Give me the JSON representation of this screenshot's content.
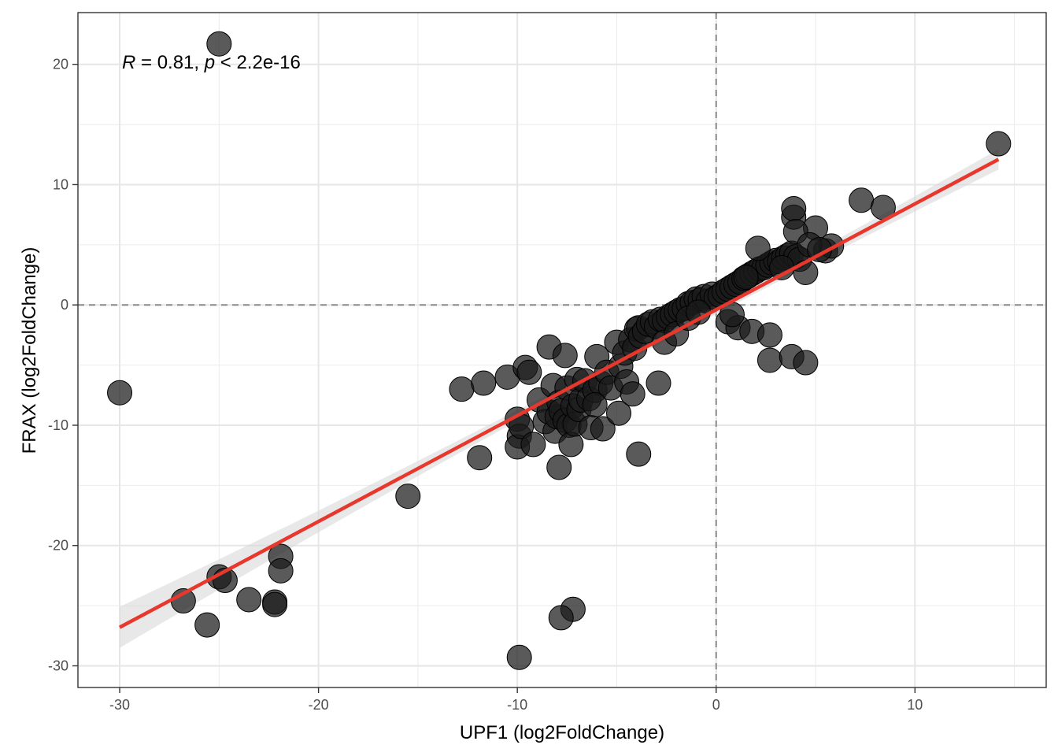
{
  "chart_data": {
    "type": "scatter",
    "title": "",
    "xlabel": "UPF1 (log2FoldChange)",
    "ylabel": "FRAX (log2FoldChange)",
    "xlim": [
      -32.1,
      16.6
    ],
    "ylim": [
      -31.8,
      24.3
    ],
    "x_ticks": [
      -30,
      -20,
      -10,
      0,
      10
    ],
    "x_tick_labels": [
      "-30",
      "-20",
      "-10",
      "0",
      "10"
    ],
    "y_ticks": [
      -30,
      -20,
      -10,
      0,
      10,
      20
    ],
    "y_tick_labels": [
      "-30",
      "-20",
      "-10",
      "0",
      "10",
      "20"
    ],
    "grid": true,
    "reference_lines": {
      "x": 0,
      "y": 0,
      "style": "dashed"
    },
    "annotation": {
      "r_symbol": "R",
      "r_text": " = 0.81, ",
      "p_symbol": "p",
      "p_text": " < 2.2e-16"
    },
    "regression": {
      "x": [
        -30,
        14.2
      ],
      "y": [
        -26.8,
        12.1
      ],
      "color": "#e8372c",
      "ci_color": "#d9d9d9"
    },
    "point_color": "#1a1a1a",
    "points": {
      "x": [
        -25.0,
        -30.0,
        -26.8,
        -25.6,
        -25.0,
        -24.7,
        -23.5,
        -22.2,
        -22.2,
        -21.9,
        -21.9,
        -15.5,
        -12.8,
        -11.9,
        -11.7,
        -10.5,
        -10.0,
        -9.9,
        -10.0,
        -9.8,
        -9.6,
        -9.4,
        -9.2,
        -8.9,
        -8.6,
        -8.4,
        -8.2,
        -8.1,
        -8.0,
        -7.9,
        -7.8,
        -7.6,
        -7.5,
        -7.4,
        -7.3,
        -7.2,
        -7.1,
        -7.0,
        -6.9,
        -6.8,
        -6.6,
        -6.4,
        -6.3,
        -6.1,
        -6.0,
        -5.8,
        -5.5,
        -5.3,
        -5.0,
        -4.8,
        -4.6,
        -4.5,
        -4.3,
        -4.1,
        -4.0,
        -3.9,
        -3.8,
        -3.6,
        -3.4,
        -3.2,
        -3.0,
        -2.8,
        -2.6,
        -2.4,
        -2.2,
        -2.0,
        -1.8,
        -1.6,
        -1.4,
        -1.2,
        -1.0,
        -0.8,
        -0.6,
        -0.4,
        -0.2,
        0.0,
        0.2,
        0.4,
        0.6,
        0.8,
        1.0,
        1.2,
        1.4,
        1.6,
        1.8,
        2.0,
        2.2,
        2.4,
        2.6,
        2.8,
        3.0,
        3.2,
        3.4,
        3.6,
        3.8,
        4.0,
        4.2,
        4.5,
        5.0,
        5.5,
        5.8,
        7.3,
        8.4,
        14.2,
        -7.9,
        -7.2,
        -9.9,
        -3.9,
        -7.8,
        -8.4,
        -7.6,
        -5.7,
        -6.1,
        -4.9,
        -4.2,
        -2.9,
        -2.6,
        -2.0,
        -1.4,
        -0.9,
        0.6,
        1.1,
        1.8,
        2.7,
        2.7,
        3.8,
        4.5,
        3.9,
        3.9,
        2.1,
        1.5,
        0.8,
        3.3,
        4.0,
        4.7,
        5.2
      ],
      "y": [
        21.7,
        -7.3,
        -24.6,
        -26.6,
        -22.6,
        -22.9,
        -24.5,
        -24.7,
        -24.9,
        -20.9,
        -22.1,
        -15.9,
        -7.0,
        -12.7,
        -6.5,
        -6.0,
        -9.5,
        -10.9,
        -11.8,
        -10.1,
        -5.2,
        -5.6,
        -11.6,
        -7.9,
        -9.7,
        -8.9,
        -6.7,
        -10.5,
        -9.3,
        -8.1,
        -8.8,
        -9.6,
        -6.9,
        -10.0,
        -11.6,
        -8.4,
        -9.9,
        -6.2,
        -8.7,
        -7.9,
        -6.3,
        -7.8,
        -10.2,
        -7.1,
        -4.3,
        -6.5,
        -5.6,
        -6.9,
        -3.1,
        -5.1,
        -4.0,
        -6.4,
        -2.9,
        -3.6,
        -2.0,
        -1.9,
        -2.6,
        -2.2,
        -1.6,
        -1.4,
        -1.8,
        -1.2,
        -1.3,
        -1.0,
        -0.8,
        -0.6,
        -0.4,
        -0.3,
        0.1,
        0.2,
        0.5,
        0.4,
        0.7,
        0.3,
        0.9,
        0.6,
        0.8,
        1.1,
        1.3,
        1.5,
        1.7,
        1.9,
        2.2,
        2.4,
        2.6,
        2.8,
        3.0,
        3.1,
        3.3,
        3.5,
        3.7,
        3.6,
        3.9,
        4.1,
        4.3,
        4.0,
        3.8,
        2.7,
        6.4,
        4.5,
        4.9,
        8.7,
        8.1,
        13.4,
        -13.5,
        -25.3,
        -29.3,
        -12.4,
        -26.0,
        -3.5,
        -4.2,
        -10.3,
        -8.3,
        -9.0,
        -7.4,
        -6.5,
        -3.1,
        -2.4,
        -1.1,
        -0.6,
        -1.4,
        -1.9,
        -2.2,
        -4.6,
        -2.5,
        -4.3,
        -4.8,
        7.3,
        8.0,
        4.7,
        2.3,
        -0.8,
        3.1,
        6.1,
        5.0,
        4.6
      ]
    }
  }
}
